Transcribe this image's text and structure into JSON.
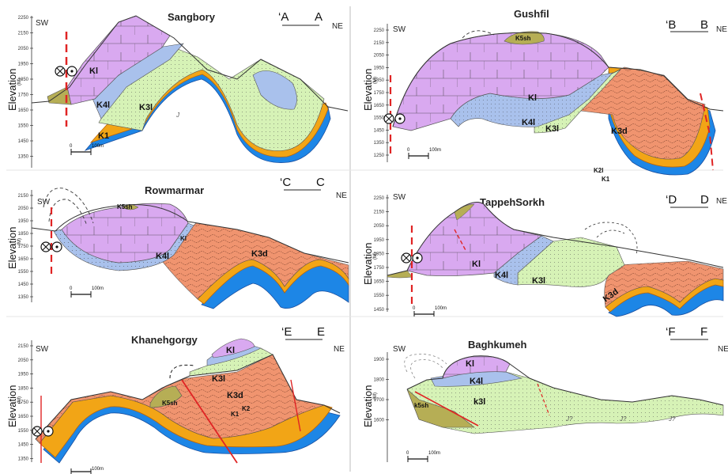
{
  "elevation_label": "Elevation",
  "unit_label": "(M)",
  "scale": {
    "zero": "0",
    "length": "100m"
  },
  "panels": [
    {
      "id": "a",
      "title": "Sangbory",
      "sw": "SW",
      "ne": "NE",
      "section_start": "‘A",
      "section_end": "A",
      "ticks": [
        "2250",
        "2150",
        "2050",
        "1950",
        "1850",
        "1750",
        "1650",
        "1550",
        "1450",
        "1350"
      ],
      "units": {
        "kl": "Kl",
        "k4l": "K4l",
        "k3l": "K3l",
        "k1": "K1",
        "j": "J"
      }
    },
    {
      "id": "b",
      "title": "Gushfil",
      "sw": "SW",
      "ne": "NE",
      "section_start": "‘B",
      "section_end": "B",
      "ticks": [
        "2250",
        "2150",
        "2050",
        "1950",
        "1850",
        "1750",
        "1650",
        "1550",
        "1450",
        "1350",
        "1250"
      ],
      "units": {
        "k5sh": "K5sh",
        "kl": "Kl",
        "k4l": "K4l",
        "k3l": "K3l",
        "k3d": "K3d",
        "k2l": "K2l",
        "k1": "K1"
      }
    },
    {
      "id": "c",
      "title": "Rowmarmar",
      "sw": "SW",
      "ne": "NE",
      "section_start": "‘C",
      "section_end": "C",
      "ticks": [
        "2150",
        "2050",
        "1950",
        "1850",
        "1750",
        "1650",
        "1550",
        "1450",
        "1350"
      ],
      "units": {
        "k5sh": "K5sh",
        "kl": "Kl",
        "k4l": "K4l",
        "k3d": "K3d"
      }
    },
    {
      "id": "d",
      "title": "TappehSorkh",
      "sw": "SW",
      "ne": "NE",
      "section_start": "‘D",
      "section_end": "D",
      "ticks": [
        "2250",
        "2150",
        "2050",
        "1950",
        "1850",
        "1750",
        "1650",
        "1550",
        "1450"
      ],
      "units": {
        "kl": "Kl",
        "k4l": "K4l",
        "k3l": "K3l",
        "k3d": "K3d"
      }
    },
    {
      "id": "e",
      "title": "Khanehgorgy",
      "sw": "SW",
      "ne": "NE",
      "section_start": "‘E",
      "section_end": "E",
      "ticks": [
        "2150",
        "2050",
        "1950",
        "1850",
        "1750",
        "1650",
        "1550",
        "1450",
        "1350"
      ],
      "units": {
        "kl": "Kl",
        "k3l": "K3l",
        "k3d": "K3d",
        "k5sh": "K5sh",
        "k2": "K2",
        "k1": "K1"
      }
    },
    {
      "id": "f",
      "title": "Baghkumeh",
      "sw": "SW",
      "ne": "NE",
      "section_start": "‘F",
      "section_end": "F",
      "ticks": [
        "1900",
        "1800",
        "1700",
        "1600"
      ],
      "units": {
        "kl": "Kl",
        "k4l": "K4l",
        "k3l": "k3l",
        "k5sh": "k5sh",
        "jq": "J?"
      }
    }
  ],
  "colors": {
    "kl": "#d9a9f0",
    "k4l": "#a9c1ec",
    "k3l": "#d6f2b6",
    "k3d": "#f0946f",
    "k5sh": "#b6ae55",
    "k2": "#f2a516",
    "k1": "#1d86e6",
    "fault": "#e02424"
  }
}
